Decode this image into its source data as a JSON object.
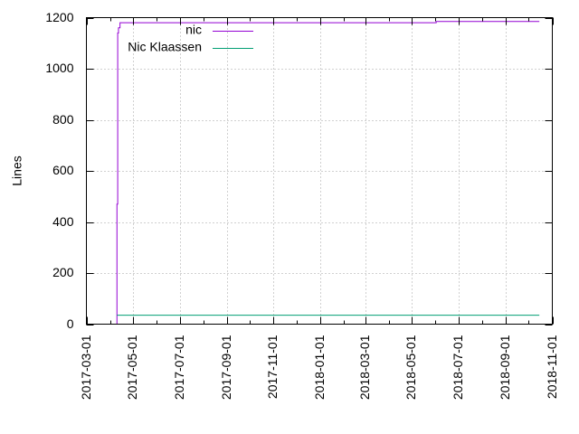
{
  "chart_data": {
    "type": "line",
    "title": "",
    "xlabel": "",
    "ylabel": "Lines",
    "x_axis_type": "date",
    "xlim": [
      "2017-03-01",
      "2018-11-01"
    ],
    "ylim": [
      0,
      1200
    ],
    "x_ticks": [
      "2017-03-01",
      "2017-05-01",
      "2017-07-01",
      "2017-09-01",
      "2017-11-01",
      "2018-01-01",
      "2018-03-01",
      "2018-05-01",
      "2018-07-01",
      "2018-09-01",
      "2018-11-01"
    ],
    "y_ticks": [
      0,
      200,
      400,
      600,
      800,
      1000,
      1200
    ],
    "grid": true,
    "grid_style": "dotted",
    "legend_position": "top-left",
    "series": [
      {
        "name": "nic",
        "color": "#9400d3",
        "style": "step",
        "points": [
          {
            "x": "2017-04-09",
            "y": 0
          },
          {
            "x": "2017-04-10",
            "y": 470
          },
          {
            "x": "2017-04-11",
            "y": 1140
          },
          {
            "x": "2017-04-12",
            "y": 1160
          },
          {
            "x": "2017-04-14",
            "y": 1180
          },
          {
            "x": "2018-06-01",
            "y": 1180
          },
          {
            "x": "2018-06-02",
            "y": 1185
          },
          {
            "x": "2018-10-15",
            "y": 1185
          }
        ]
      },
      {
        "name": "Nic Klaassen",
        "color": "#009e73",
        "style": "step",
        "points": [
          {
            "x": "2017-04-10",
            "y": 35
          },
          {
            "x": "2018-10-15",
            "y": 35
          }
        ]
      }
    ]
  }
}
